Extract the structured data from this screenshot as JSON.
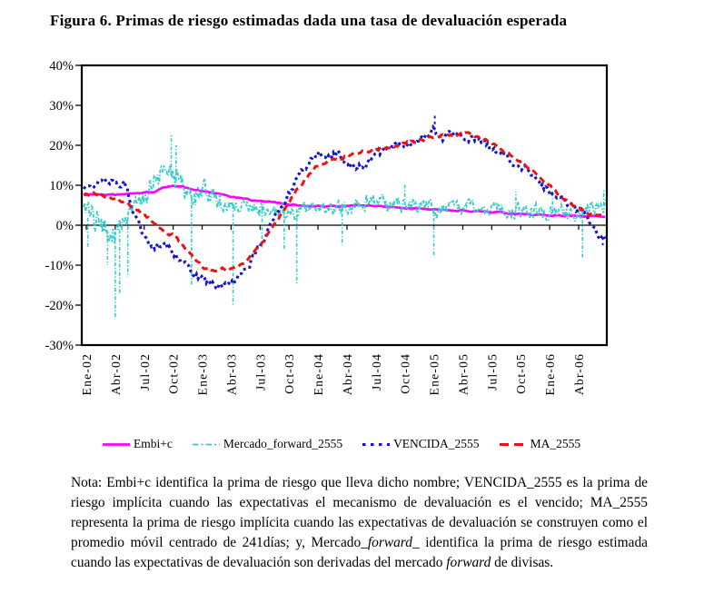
{
  "page": {
    "title": "Figura 6. Primas de riesgo estimadas dada una tasa de devaluación esperada"
  },
  "chart_data": {
    "type": "line",
    "title": "Figura 6. Primas de riesgo estimadas dada una tasa de devaluación esperada",
    "xlabel": "",
    "ylabel": "",
    "y_unit": "%",
    "ylim": [
      -30,
      40
    ],
    "y_ticks": [
      "40%",
      "30%",
      "20%",
      "10%",
      "0%",
      "-10%",
      "-20%",
      "-30%"
    ],
    "x_ticks": [
      "Ene-02",
      "Abr-02",
      "Jul-02",
      "Oct-02",
      "Ene-03",
      "Abr-03",
      "Jul-03",
      "Oct-03",
      "Ene-04",
      "Abr-04",
      "Jul-04",
      "Oct-04",
      "Ene-05",
      "Abr-05",
      "Jul-05",
      "Oct-05",
      "Ene-06",
      "Abr-06"
    ],
    "x_months": [
      "Ene-02",
      "Feb-02",
      "Mar-02",
      "Abr-02",
      "May-02",
      "Jun-02",
      "Jul-02",
      "Ago-02",
      "Sep-02",
      "Oct-02",
      "Nov-02",
      "Dic-02",
      "Ene-03",
      "Feb-03",
      "Mar-03",
      "Abr-03",
      "May-03",
      "Jun-03",
      "Jul-03",
      "Ago-03",
      "Sep-03",
      "Oct-03",
      "Nov-03",
      "Dic-03",
      "Ene-04",
      "Feb-04",
      "Mar-04",
      "Abr-04",
      "May-04",
      "Jun-04",
      "Jul-04",
      "Ago-04",
      "Sep-04",
      "Oct-04",
      "Nov-04",
      "Dic-04",
      "Ene-05",
      "Feb-05",
      "Mar-05",
      "Abr-05",
      "May-05",
      "Jun-05",
      "Jul-05",
      "Ago-05",
      "Sep-05",
      "Oct-05",
      "Nov-05",
      "Dic-05",
      "Ene-06",
      "Feb-06",
      "Mar-06",
      "Abr-06",
      "May-06",
      "Jun-06"
    ],
    "grid": false,
    "legend_position": "bottom",
    "series": [
      {
        "id": "embi",
        "label": "Embi+c",
        "color": "#FF00FF",
        "style": "solid",
        "values": [
          7.6,
          7.8,
          7.7,
          7.6,
          7.7,
          8.0,
          8.1,
          8.4,
          9.3,
          10.0,
          9.6,
          9.0,
          8.6,
          8.2,
          7.6,
          7.1,
          6.8,
          6.3,
          6.0,
          5.8,
          5.5,
          5.2,
          5.0,
          4.9,
          4.8,
          4.7,
          4.6,
          4.8,
          5.0,
          5.0,
          4.9,
          4.7,
          4.5,
          4.3,
          4.2,
          4.1,
          4.0,
          3.9,
          3.8,
          3.7,
          3.5,
          3.4,
          3.2,
          3.1,
          2.9,
          2.8,
          2.6,
          2.5,
          2.4,
          2.4,
          2.3,
          2.3,
          2.2,
          2.2
        ],
        "render": {
          "ppm": 4,
          "noise": 0.15,
          "width": 2.7,
          "dash": "",
          "legend_dash": ""
        }
      },
      {
        "id": "mercado",
        "label": "Mercado_forward_2555",
        "color": "#33CCCC",
        "style": "dash-dot",
        "values": [
          2.0,
          1.0,
          -1.0,
          -3.0,
          1.0,
          4.0,
          8.0,
          10.5,
          14.0,
          12.0,
          9.0,
          7.0,
          7.0,
          6.0,
          6.0,
          5.0,
          5.0,
          4.0,
          4.0,
          3.0,
          3.0,
          4.0,
          4.0,
          5.0,
          5.0,
          4.0,
          5.0,
          5.0,
          6.0,
          6.5,
          6.0,
          5.0,
          5.0,
          5.0,
          5.0,
          5.0,
          4.0,
          4.0,
          5.0,
          4.0,
          4.0,
          4.0,
          4.0,
          4.0,
          4.0,
          4.0,
          3.0,
          3.0,
          3.0,
          3.0,
          2.5,
          3.0,
          4.0,
          5.0
        ],
        "spikes": [
          {
            "month": 0.15,
            "value": -5.5
          },
          {
            "month": 2.2,
            "value": -10
          },
          {
            "month": 3.0,
            "value": -23
          },
          {
            "month": 3.45,
            "value": -17
          },
          {
            "month": 4.3,
            "value": -13
          },
          {
            "month": 8.8,
            "value": 22.5
          },
          {
            "month": 9.3,
            "value": 20
          },
          {
            "month": 10.9,
            "value": -15
          },
          {
            "month": 15.2,
            "value": -20
          },
          {
            "month": 18.2,
            "value": -6
          },
          {
            "month": 20.5,
            "value": -6
          },
          {
            "month": 21.8,
            "value": -15
          },
          {
            "month": 26.5,
            "value": -5
          },
          {
            "month": 33.0,
            "value": 10.5
          },
          {
            "month": 36.0,
            "value": -8
          },
          {
            "month": 44.5,
            "value": 8.5
          },
          {
            "month": 48.3,
            "value": 8
          },
          {
            "month": 51.4,
            "value": -8
          },
          {
            "month": 53.6,
            "value": 9
          }
        ],
        "render": {
          "ppm": 11,
          "noise": 1.6,
          "noise_early": 2.6,
          "noise_split": 14,
          "width": 1.8,
          "dash": "4 2 1.3 2",
          "legend_dash": "6.5 3 2 3"
        }
      },
      {
        "id": "vencida",
        "label": "VENCIDA_2555",
        "color": "#1414CC",
        "style": "square-dot",
        "values": [
          9.5,
          10.5,
          10.8,
          10.5,
          10.5,
          2.0,
          -3.5,
          -5.5,
          -5.0,
          -6.5,
          -8.5,
          -12.0,
          -13.5,
          -14.8,
          -14.5,
          -15.0,
          -12.5,
          -9.0,
          -5.0,
          -0.5,
          3.5,
          8.5,
          12.0,
          15.5,
          18.5,
          17.0,
          18.0,
          15.5,
          14.0,
          15.5,
          17.5,
          18.5,
          19.5,
          20.0,
          20.5,
          21.5,
          24.0,
          22.0,
          23.0,
          22.0,
          21.5,
          20.5,
          19.5,
          18.0,
          16.5,
          15.0,
          13.0,
          10.5,
          8.0,
          6.5,
          5.0,
          3.5,
          1.5,
          -3.0
        ],
        "spikes": [
          {
            "month": 36.1,
            "value": 28
          },
          {
            "month": 53.5,
            "value": -5
          }
        ],
        "render": {
          "ppm": 6,
          "noise": 0.9,
          "width": 3.1,
          "dash": "3 3.4",
          "legend_dash": "3.5 5.5"
        }
      },
      {
        "id": "ma",
        "label": "MA_2555",
        "color": "#EE1111",
        "style": "dash",
        "values": [
          7.8,
          8.0,
          7.5,
          6.5,
          5.8,
          4.5,
          2.5,
          0.5,
          -1.5,
          -2.5,
          -5.0,
          -8.0,
          -10.5,
          -11.3,
          -11.0,
          -11.0,
          -10.0,
          -8.0,
          -5.0,
          -1.5,
          2.0,
          6.0,
          9.5,
          12.5,
          15.0,
          16.0,
          16.5,
          17.5,
          18.0,
          18.5,
          19.0,
          19.5,
          20.0,
          20.5,
          21.0,
          21.5,
          22.0,
          22.5,
          22.5,
          23.0,
          22.5,
          21.5,
          20.5,
          19.0,
          17.5,
          16.0,
          14.0,
          12.0,
          10.0,
          7.5,
          5.5,
          4.0,
          3.0,
          2.5
        ],
        "render": {
          "ppm": 6,
          "noise": 0.35,
          "width": 3.0,
          "dash": "7 4.5",
          "legend_dash": "10 6"
        }
      }
    ]
  },
  "note": {
    "segments": [
      {
        "italic": false,
        "text": "Nota: Embi+c identifica la prima de riesgo que lleva dicho nombre; VENCIDA_2555 es la prima de riesgo implícita cuando las expectativas el mecanismo de devaluación es el vencido; MA_2555 representa la prima de riesgo implícita cuando las expectativas de devaluación se construyen como el promedio móvil centrado de 241días; y, Mercado_"
      },
      {
        "italic": true,
        "text": "forward"
      },
      {
        "italic": false,
        "text": "_ identifica la prima de riesgo estimada cuando las expectativas de devaluación son derivadas del mercado "
      },
      {
        "italic": true,
        "text": "forward"
      },
      {
        "italic": false,
        "text": " de divisas."
      }
    ]
  }
}
